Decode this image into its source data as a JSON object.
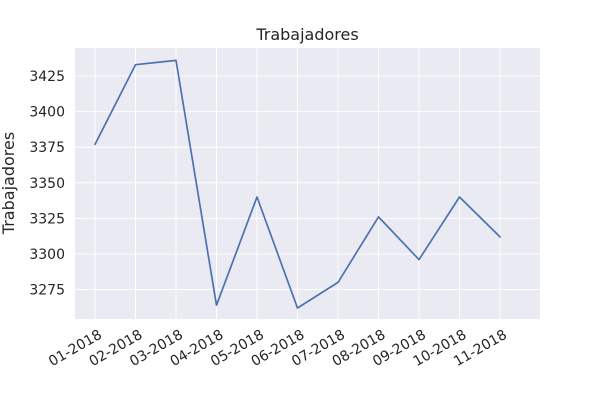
{
  "chart_data": {
    "type": "line",
    "title": "Trabajadores",
    "xlabel": "",
    "ylabel": "Trabajadores",
    "categories": [
      "01-2018",
      "02-2018",
      "03-2018",
      "04-2018",
      "05-2018",
      "06-2018",
      "07-2018",
      "08-2018",
      "09-2018",
      "10-2018",
      "11-2018"
    ],
    "series": [
      {
        "values": [
          3377,
          3433,
          3436,
          3264,
          3340,
          3262,
          3280,
          3326,
          3296,
          3340,
          3312
        ]
      }
    ],
    "yticks": [
      3275,
      3300,
      3325,
      3350,
      3375,
      3400,
      3425
    ],
    "ylim": [
      3254.3,
      3444.7
    ],
    "grid": true,
    "colors": {
      "background": "#eaeaf2",
      "grid": "#ffffff",
      "line": "#4c72b0",
      "text": "#262626"
    }
  }
}
